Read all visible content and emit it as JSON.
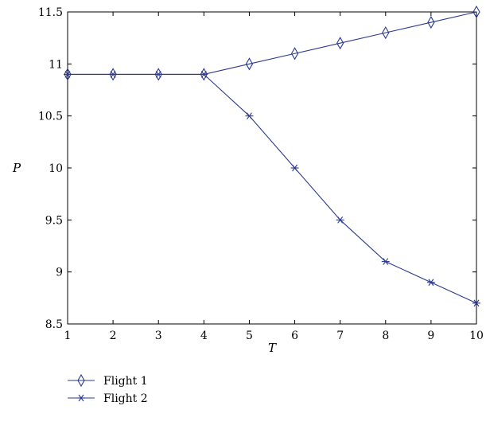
{
  "chart_data": {
    "type": "line",
    "xlabel": "T",
    "ylabel": "P",
    "xlim": [
      1,
      10
    ],
    "ylim": [
      8.5,
      11.5
    ],
    "x": [
      1,
      2,
      3,
      4,
      5,
      6,
      7,
      8,
      9,
      10
    ],
    "xticks": [
      "1",
      "2",
      "3",
      "4",
      "5",
      "6",
      "7",
      "8",
      "9",
      "10"
    ],
    "yticks": [
      "8.5",
      "9",
      "9.5",
      "10",
      "10.5",
      "11",
      "11.5"
    ],
    "grid": false,
    "legend_position": "below-left",
    "line_color": "#2b3990",
    "series": [
      {
        "name": "Flight 1",
        "marker": "diamond",
        "values": [
          10.9,
          10.9,
          10.9,
          10.9,
          11.0,
          11.1,
          11.2,
          11.3,
          11.4,
          11.5
        ]
      },
      {
        "name": "Flight 2",
        "marker": "asterisk",
        "values": [
          10.9,
          10.9,
          10.9,
          10.9,
          10.5,
          10.0,
          9.5,
          9.1,
          8.9,
          8.7
        ]
      }
    ]
  }
}
